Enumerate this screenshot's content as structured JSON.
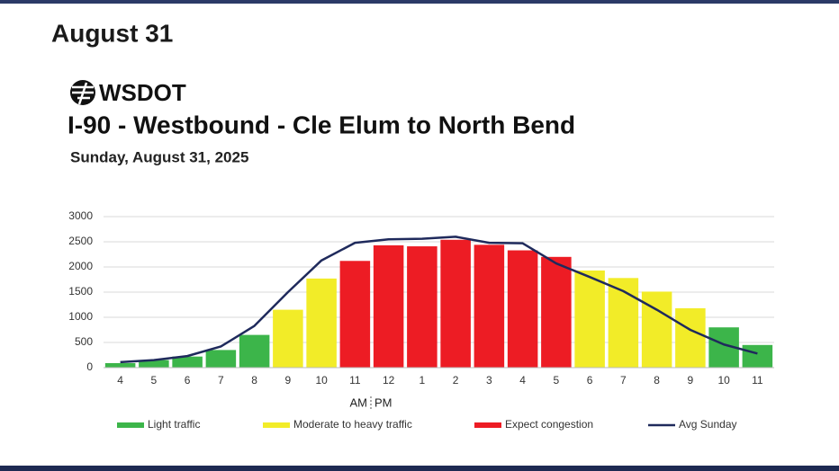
{
  "heading": "August 31",
  "brand": "WSDOT",
  "chart_data": {
    "type": "bar",
    "title": "I-90 - Westbound - Cle Elum to North Bend",
    "subtitle": "Sunday, August 31, 2025",
    "annotations": [
      "AM",
      "PM"
    ],
    "categories": [
      "4",
      "5",
      "6",
      "7",
      "8",
      "9",
      "10",
      "11",
      "12",
      "1",
      "2",
      "3",
      "4",
      "5",
      "6",
      "7",
      "8",
      "9",
      "10",
      "11"
    ],
    "ylim": [
      0,
      3000
    ],
    "yticks": [
      0,
      500,
      1000,
      1500,
      2000,
      2500,
      3000
    ],
    "grid": true,
    "series": [
      {
        "name": "Light traffic",
        "color": "#3cb54a",
        "values": [
          90,
          150,
          220,
          350,
          650,
          null,
          null,
          null,
          null,
          null,
          null,
          null,
          null,
          null,
          null,
          null,
          null,
          null,
          800,
          450
        ]
      },
      {
        "name": "Moderate to heavy traffic",
        "color": "#f2ec28",
        "values": [
          null,
          null,
          null,
          null,
          null,
          1150,
          1770,
          null,
          null,
          null,
          null,
          null,
          null,
          null,
          1930,
          1780,
          1510,
          1180,
          null,
          null
        ]
      },
      {
        "name": "Expect congestion",
        "color": "#ed1c24",
        "values": [
          null,
          null,
          null,
          null,
          null,
          null,
          null,
          2120,
          2430,
          2410,
          2540,
          2440,
          2330,
          2200,
          null,
          null,
          null,
          null,
          null,
          null
        ]
      },
      {
        "name": "Avg Sunday",
        "type": "line",
        "color": "#1f2a5c",
        "values": [
          110,
          150,
          230,
          420,
          830,
          1500,
          2130,
          2480,
          2550,
          2560,
          2600,
          2480,
          2470,
          2070,
          1800,
          1520,
          1150,
          750,
          460,
          280
        ]
      }
    ]
  }
}
